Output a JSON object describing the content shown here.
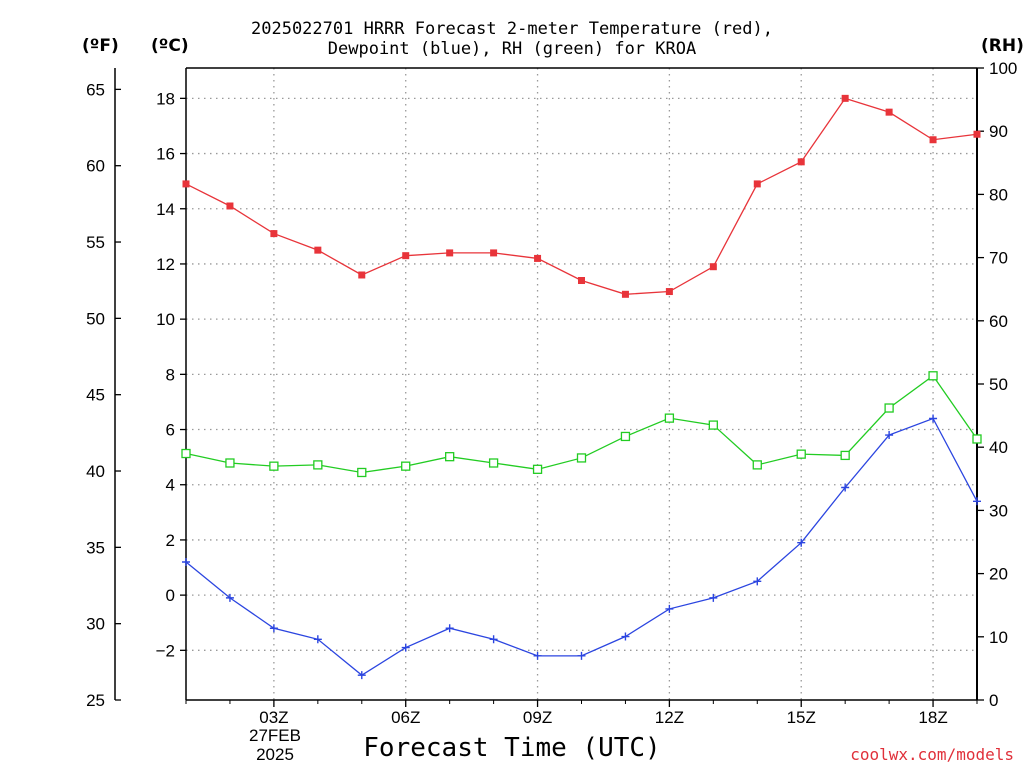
{
  "title": {
    "line1": "2025022701 HRRR Forecast 2-meter Temperature (red),",
    "line2": "Dewpoint (blue), RH (green) for KROA"
  },
  "units": {
    "f": "(ºF)",
    "c": "(ºC)",
    "rh": "(RH)"
  },
  "xlabel": "Forecast Time (UTC)",
  "date_label": {
    "day": "27FEB",
    "year": "2025"
  },
  "credit": "coolwx.com/models",
  "colors": {
    "temperature": "#e8343a",
    "dewpoint": "#2b45e0",
    "rh": "#22cc22",
    "grid": "#999999"
  },
  "chart_data": {
    "type": "line",
    "title": "2025022701 HRRR Forecast 2-meter Temperature (red), Dewpoint (blue), RH (green) for KROA",
    "xlabel": "Forecast Time (UTC)",
    "x": [
      1,
      2,
      3,
      4,
      5,
      6,
      7,
      8,
      9,
      10,
      11,
      12,
      13,
      14,
      15,
      16,
      17,
      18,
      19
    ],
    "xlim": [
      1,
      19
    ],
    "x_ticks": [
      3,
      6,
      9,
      12,
      15,
      18
    ],
    "x_tick_labels": [
      "03Z",
      "06Z",
      "09Z",
      "12Z",
      "15Z",
      "18Z"
    ],
    "axes": {
      "celsius": {
        "label": "(ºC)",
        "range": [
          -3.8,
          19.1
        ],
        "ticks": [
          -2,
          0,
          2,
          4,
          6,
          8,
          10,
          12,
          14,
          16,
          18
        ]
      },
      "fahrenheit": {
        "label": "(ºF)",
        "range": [
          25,
          66.4
        ],
        "ticks": [
          25,
          30,
          35,
          40,
          45,
          50,
          55,
          60,
          65
        ]
      },
      "rh": {
        "label": "(RH)",
        "range": [
          0,
          100
        ],
        "ticks": [
          0,
          10,
          20,
          30,
          40,
          50,
          60,
          70,
          80,
          90,
          100
        ]
      }
    },
    "grid": true,
    "series": [
      {
        "name": "Temperature",
        "axis": "celsius",
        "marker": "filled-square",
        "values": [
          14.9,
          14.1,
          13.1,
          12.5,
          11.6,
          12.3,
          12.4,
          12.4,
          12.2,
          11.4,
          10.9,
          11.0,
          11.9,
          14.9,
          15.7,
          18.0,
          17.5,
          16.5,
          16.7
        ]
      },
      {
        "name": "Dewpoint",
        "axis": "celsius",
        "marker": "plus",
        "values": [
          1.2,
          -0.1,
          -1.2,
          -1.6,
          -2.9,
          -1.9,
          -1.2,
          -1.6,
          -2.2,
          -2.2,
          -1.5,
          -0.5,
          -0.1,
          0.5,
          1.9,
          3.9,
          5.8,
          6.4,
          3.4
        ]
      },
      {
        "name": "RH",
        "axis": "rh",
        "marker": "open-square",
        "values": [
          39,
          37.5,
          37,
          37.2,
          36,
          37,
          38.5,
          37.5,
          36.5,
          38.3,
          41.7,
          44.6,
          43.5,
          37.2,
          38.9,
          38.7,
          46.2,
          51.3,
          41.3
        ]
      }
    ]
  }
}
